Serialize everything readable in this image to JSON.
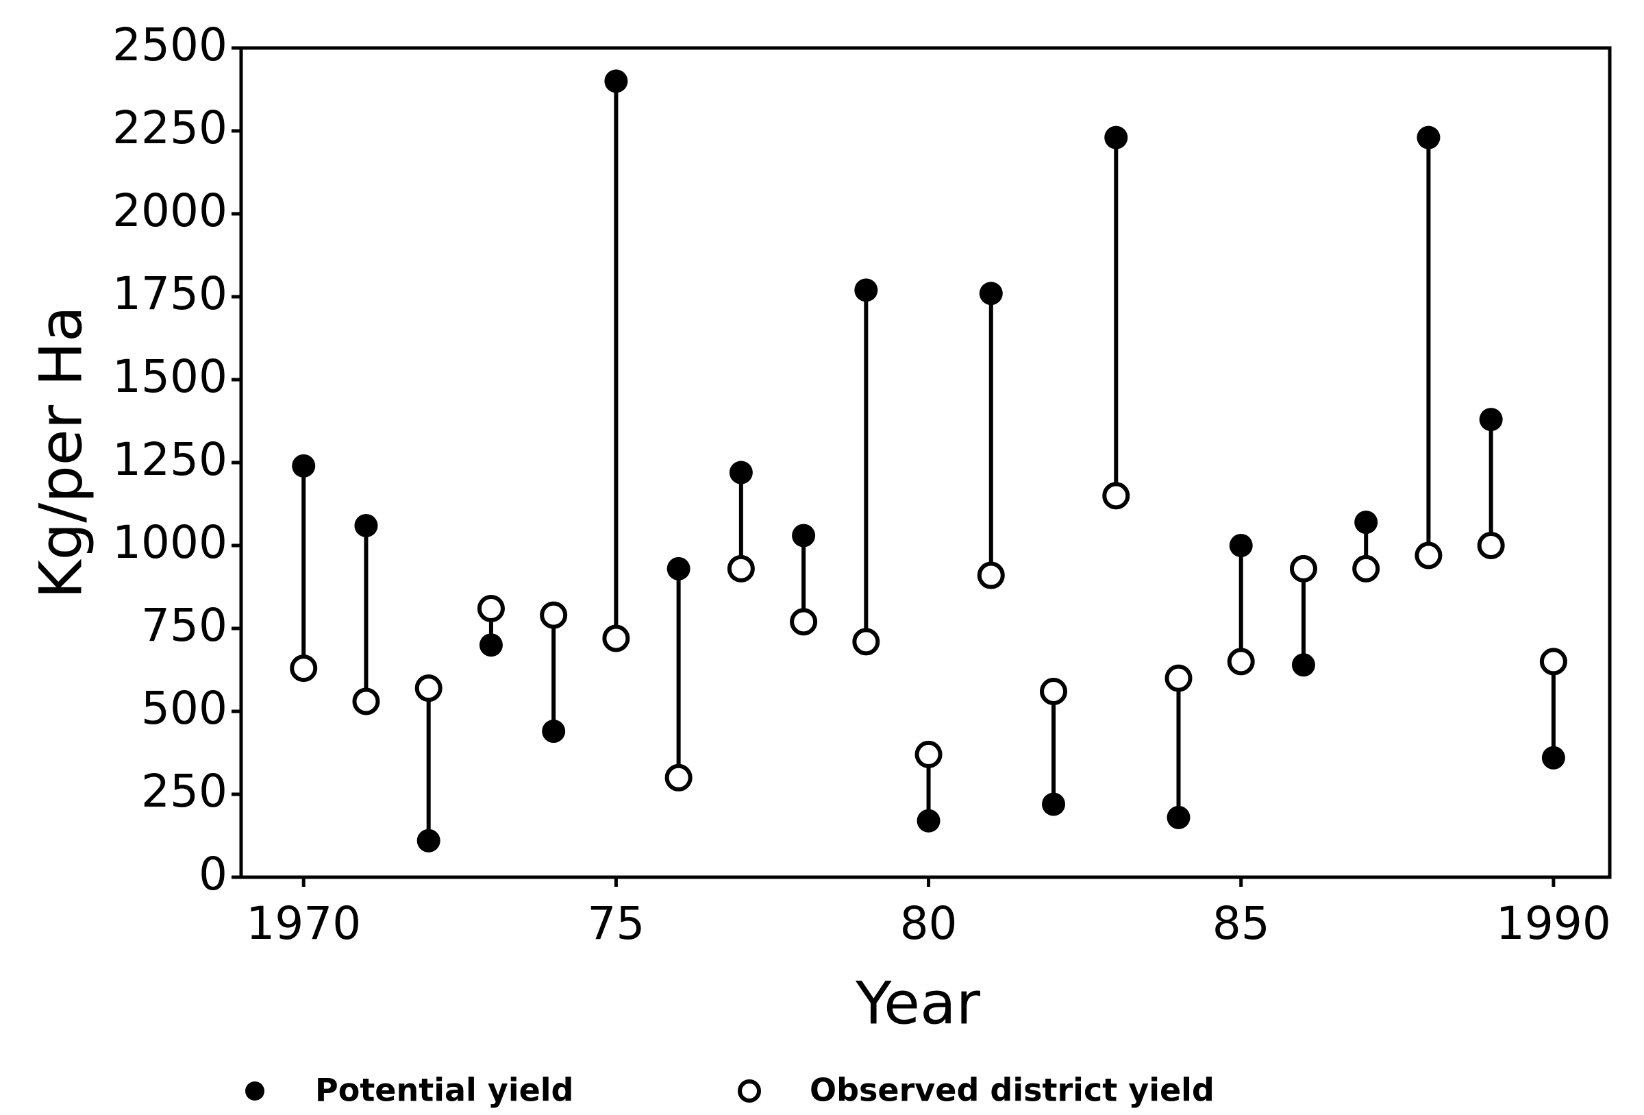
{
  "chart_data": {
    "type": "dumbbell",
    "x_label": "Year",
    "y_label": "Kg/per Ha",
    "x": [
      1970,
      1971,
      1972,
      1973,
      1974,
      1975,
      1976,
      1977,
      1978,
      1979,
      1980,
      1981,
      1982,
      1983,
      1984,
      1985,
      1986,
      1987,
      1988,
      1989,
      1990
    ],
    "series": [
      {
        "name": "Potential yield",
        "color": "#000000",
        "marker": "filled",
        "values": [
          1240,
          1060,
          110,
          700,
          440,
          2400,
          930,
          1220,
          1030,
          1770,
          170,
          1760,
          220,
          2230,
          180,
          1000,
          640,
          1070,
          2230,
          1380,
          360
        ]
      },
      {
        "name": "Observed district yield",
        "color": "#000000",
        "marker": "open",
        "values": [
          630,
          530,
          570,
          810,
          790,
          720,
          300,
          930,
          770,
          710,
          370,
          910,
          560,
          1150,
          600,
          650,
          930,
          930,
          970,
          1000,
          650
        ]
      }
    ],
    "xlim": [
      1969,
      1990.9
    ],
    "xticks": [
      1970,
      {
        "value": 1975,
        "label": "75"
      },
      {
        "value": 1980,
        "label": "80"
      },
      {
        "value": 1985,
        "label": "85"
      },
      1990
    ],
    "ylim": [
      0,
      2500
    ],
    "yticks": [
      0,
      250,
      500,
      750,
      1000,
      1250,
      1500,
      1750,
      2000,
      2250,
      2500
    ],
    "grid": false,
    "legend": "bottom"
  }
}
